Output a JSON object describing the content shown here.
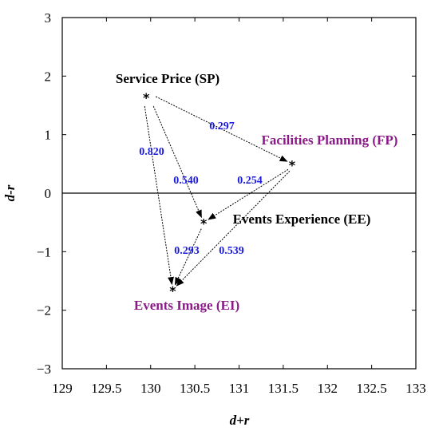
{
  "chart_data": {
    "type": "scatter",
    "xlabel": "d+r",
    "ylabel": "d-r",
    "xlim": [
      129,
      133
    ],
    "ylim": [
      -3,
      3
    ],
    "x_ticks": [
      "129",
      "129.5",
      "130",
      "130.5",
      "131",
      "131.5",
      "132",
      "132.5",
      "133"
    ],
    "y_ticks": [
      "3",
      "2",
      "1",
      "0",
      "−1",
      "−2",
      "−3"
    ],
    "zero_line": true,
    "grid": false,
    "colors": {
      "black": "#000000",
      "purple": "#8b1a89",
      "blue": "#1a1adf"
    },
    "nodes": [
      {
        "id": "SP",
        "label": "Service Price (SP)",
        "x": 129.95,
        "y": 1.65,
        "color": "black"
      },
      {
        "id": "FP",
        "label": "Facilities Planning (FP)",
        "x": 131.6,
        "y": 0.5,
        "color": "purple"
      },
      {
        "id": "EE",
        "label": "Events Experience (EE)",
        "x": 130.6,
        "y": -0.5,
        "color": "black"
      },
      {
        "id": "EI",
        "label": "Events Image (EI)",
        "x": 130.25,
        "y": -1.65,
        "color": "purple"
      }
    ],
    "edges": [
      {
        "from": "SP",
        "to": "FP",
        "weight": "0.297"
      },
      {
        "from": "SP",
        "to": "EI",
        "weight": "0.820"
      },
      {
        "from": "SP",
        "to": "EE",
        "weight": "0.540"
      },
      {
        "from": "FP",
        "to": "EE",
        "weight": "0.254"
      },
      {
        "from": "FP",
        "to": "EI",
        "weight": "0.539"
      },
      {
        "from": "EE",
        "to": "EI",
        "weight": "0.293"
      }
    ]
  }
}
